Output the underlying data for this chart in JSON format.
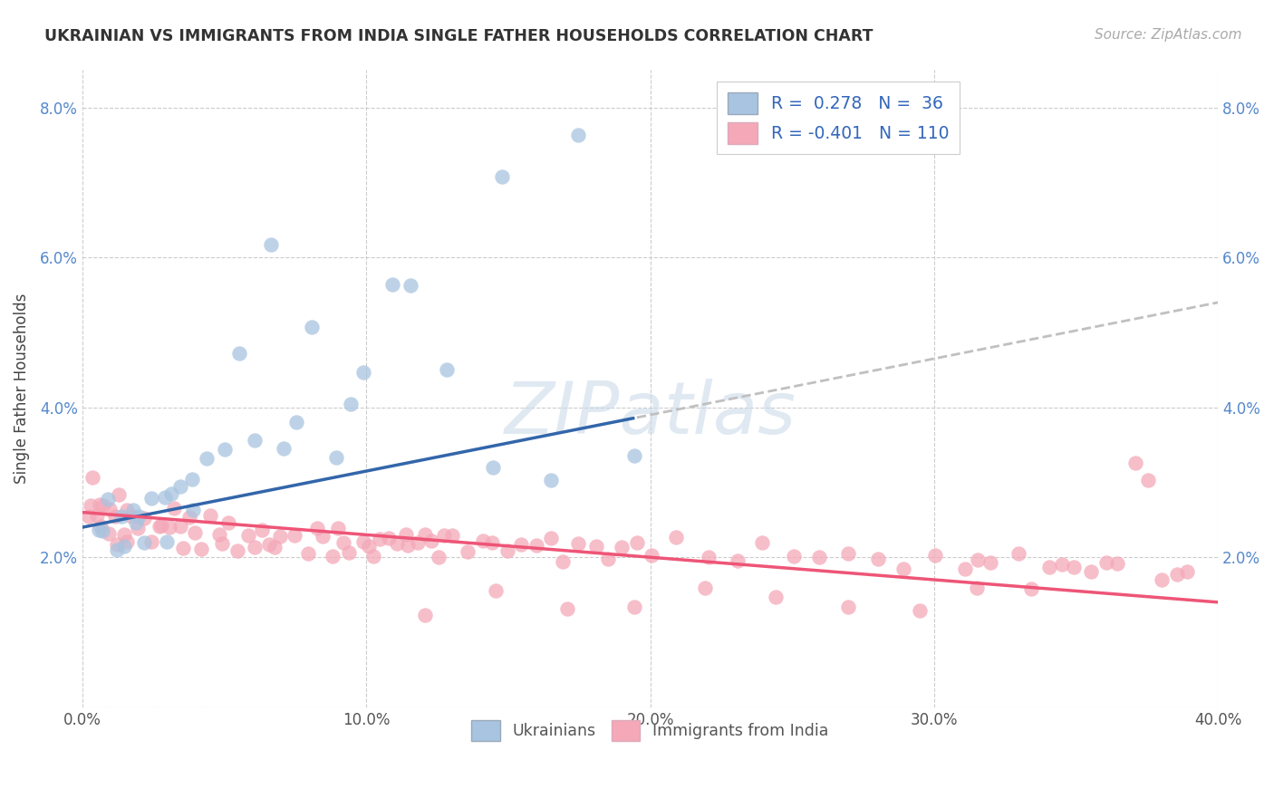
{
  "title": "UKRAINIAN VS IMMIGRANTS FROM INDIA SINGLE FATHER HOUSEHOLDS CORRELATION CHART",
  "source": "Source: ZipAtlas.com",
  "ylabel": "Single Father Households",
  "xlim": [
    0.0,
    0.4
  ],
  "ylim": [
    0.0,
    0.085
  ],
  "xticks": [
    0.0,
    0.1,
    0.2,
    0.3,
    0.4
  ],
  "yticks": [
    0.0,
    0.02,
    0.04,
    0.06,
    0.08
  ],
  "xticklabels": [
    "0.0%",
    "10.0%",
    "20.0%",
    "30.0%",
    "40.0%"
  ],
  "yticklabels": [
    "",
    "2.0%",
    "4.0%",
    "6.0%",
    "8.0%"
  ],
  "blue_color": "#A8C4E0",
  "pink_color": "#F4A8B8",
  "trendline_blue": "#3366AA",
  "trendline_pink": "#EE5577",
  "trendline_ext_color": "#C0C0C0",
  "blue_R": 0.278,
  "blue_N": 36,
  "pink_R": -0.401,
  "pink_N": 110,
  "background_color": "#FFFFFF",
  "grid_color": "#CCCCCC",
  "watermark_color": "#C8D8E8",
  "blue_x": [
    0.005,
    0.008,
    0.01,
    0.012,
    0.013,
    0.015,
    0.016,
    0.018,
    0.02,
    0.022,
    0.025,
    0.028,
    0.03,
    0.033,
    0.035,
    0.038,
    0.04,
    0.045,
    0.05,
    0.055,
    0.06,
    0.065,
    0.07,
    0.075,
    0.08,
    0.09,
    0.095,
    0.1,
    0.11,
    0.115,
    0.13,
    0.145,
    0.148,
    0.165,
    0.175,
    0.195
  ],
  "blue_y": [
    0.024,
    0.022,
    0.026,
    0.021,
    0.025,
    0.023,
    0.027,
    0.025,
    0.024,
    0.023,
    0.028,
    0.026,
    0.022,
    0.028,
    0.031,
    0.025,
    0.03,
    0.033,
    0.035,
    0.048,
    0.036,
    0.061,
    0.033,
    0.038,
    0.05,
    0.033,
    0.04,
    0.044,
    0.055,
    0.058,
    0.044,
    0.033,
    0.072,
    0.03,
    0.078,
    0.032
  ],
  "pink_x": [
    0.002,
    0.003,
    0.004,
    0.005,
    0.006,
    0.007,
    0.008,
    0.009,
    0.01,
    0.011,
    0.012,
    0.013,
    0.014,
    0.015,
    0.016,
    0.018,
    0.02,
    0.022,
    0.024,
    0.026,
    0.028,
    0.03,
    0.032,
    0.034,
    0.036,
    0.038,
    0.04,
    0.042,
    0.045,
    0.048,
    0.05,
    0.052,
    0.055,
    0.058,
    0.06,
    0.063,
    0.065,
    0.068,
    0.07,
    0.075,
    0.08,
    0.082,
    0.085,
    0.088,
    0.09,
    0.092,
    0.095,
    0.098,
    0.1,
    0.103,
    0.105,
    0.108,
    0.11,
    0.113,
    0.115,
    0.118,
    0.12,
    0.123,
    0.125,
    0.128,
    0.13,
    0.135,
    0.14,
    0.145,
    0.15,
    0.155,
    0.16,
    0.165,
    0.17,
    0.175,
    0.18,
    0.185,
    0.19,
    0.195,
    0.2,
    0.21,
    0.22,
    0.23,
    0.24,
    0.25,
    0.26,
    0.27,
    0.28,
    0.29,
    0.3,
    0.31,
    0.315,
    0.32,
    0.33,
    0.34,
    0.345,
    0.35,
    0.355,
    0.36,
    0.365,
    0.37,
    0.375,
    0.38,
    0.385,
    0.39,
    0.12,
    0.145,
    0.17,
    0.195,
    0.22,
    0.245,
    0.27,
    0.295,
    0.315,
    0.335
  ],
  "pink_y": [
    0.026,
    0.03,
    0.027,
    0.025,
    0.028,
    0.024,
    0.026,
    0.023,
    0.027,
    0.025,
    0.022,
    0.028,
    0.024,
    0.026,
    0.023,
    0.025,
    0.024,
    0.026,
    0.022,
    0.025,
    0.024,
    0.023,
    0.026,
    0.024,
    0.022,
    0.025,
    0.023,
    0.022,
    0.025,
    0.023,
    0.022,
    0.024,
    0.021,
    0.023,
    0.022,
    0.024,
    0.021,
    0.022,
    0.023,
    0.022,
    0.021,
    0.023,
    0.022,
    0.021,
    0.024,
    0.022,
    0.021,
    0.023,
    0.022,
    0.021,
    0.023,
    0.022,
    0.021,
    0.024,
    0.022,
    0.021,
    0.023,
    0.022,
    0.021,
    0.023,
    0.022,
    0.021,
    0.023,
    0.022,
    0.02,
    0.022,
    0.021,
    0.022,
    0.02,
    0.022,
    0.021,
    0.02,
    0.022,
    0.021,
    0.02,
    0.022,
    0.021,
    0.02,
    0.022,
    0.021,
    0.019,
    0.021,
    0.02,
    0.019,
    0.021,
    0.019,
    0.02,
    0.019,
    0.021,
    0.019,
    0.02,
    0.019,
    0.018,
    0.02,
    0.019,
    0.033,
    0.03,
    0.018,
    0.017,
    0.019,
    0.013,
    0.015,
    0.014,
    0.013,
    0.015,
    0.014,
    0.013,
    0.012,
    0.016,
    0.015
  ]
}
